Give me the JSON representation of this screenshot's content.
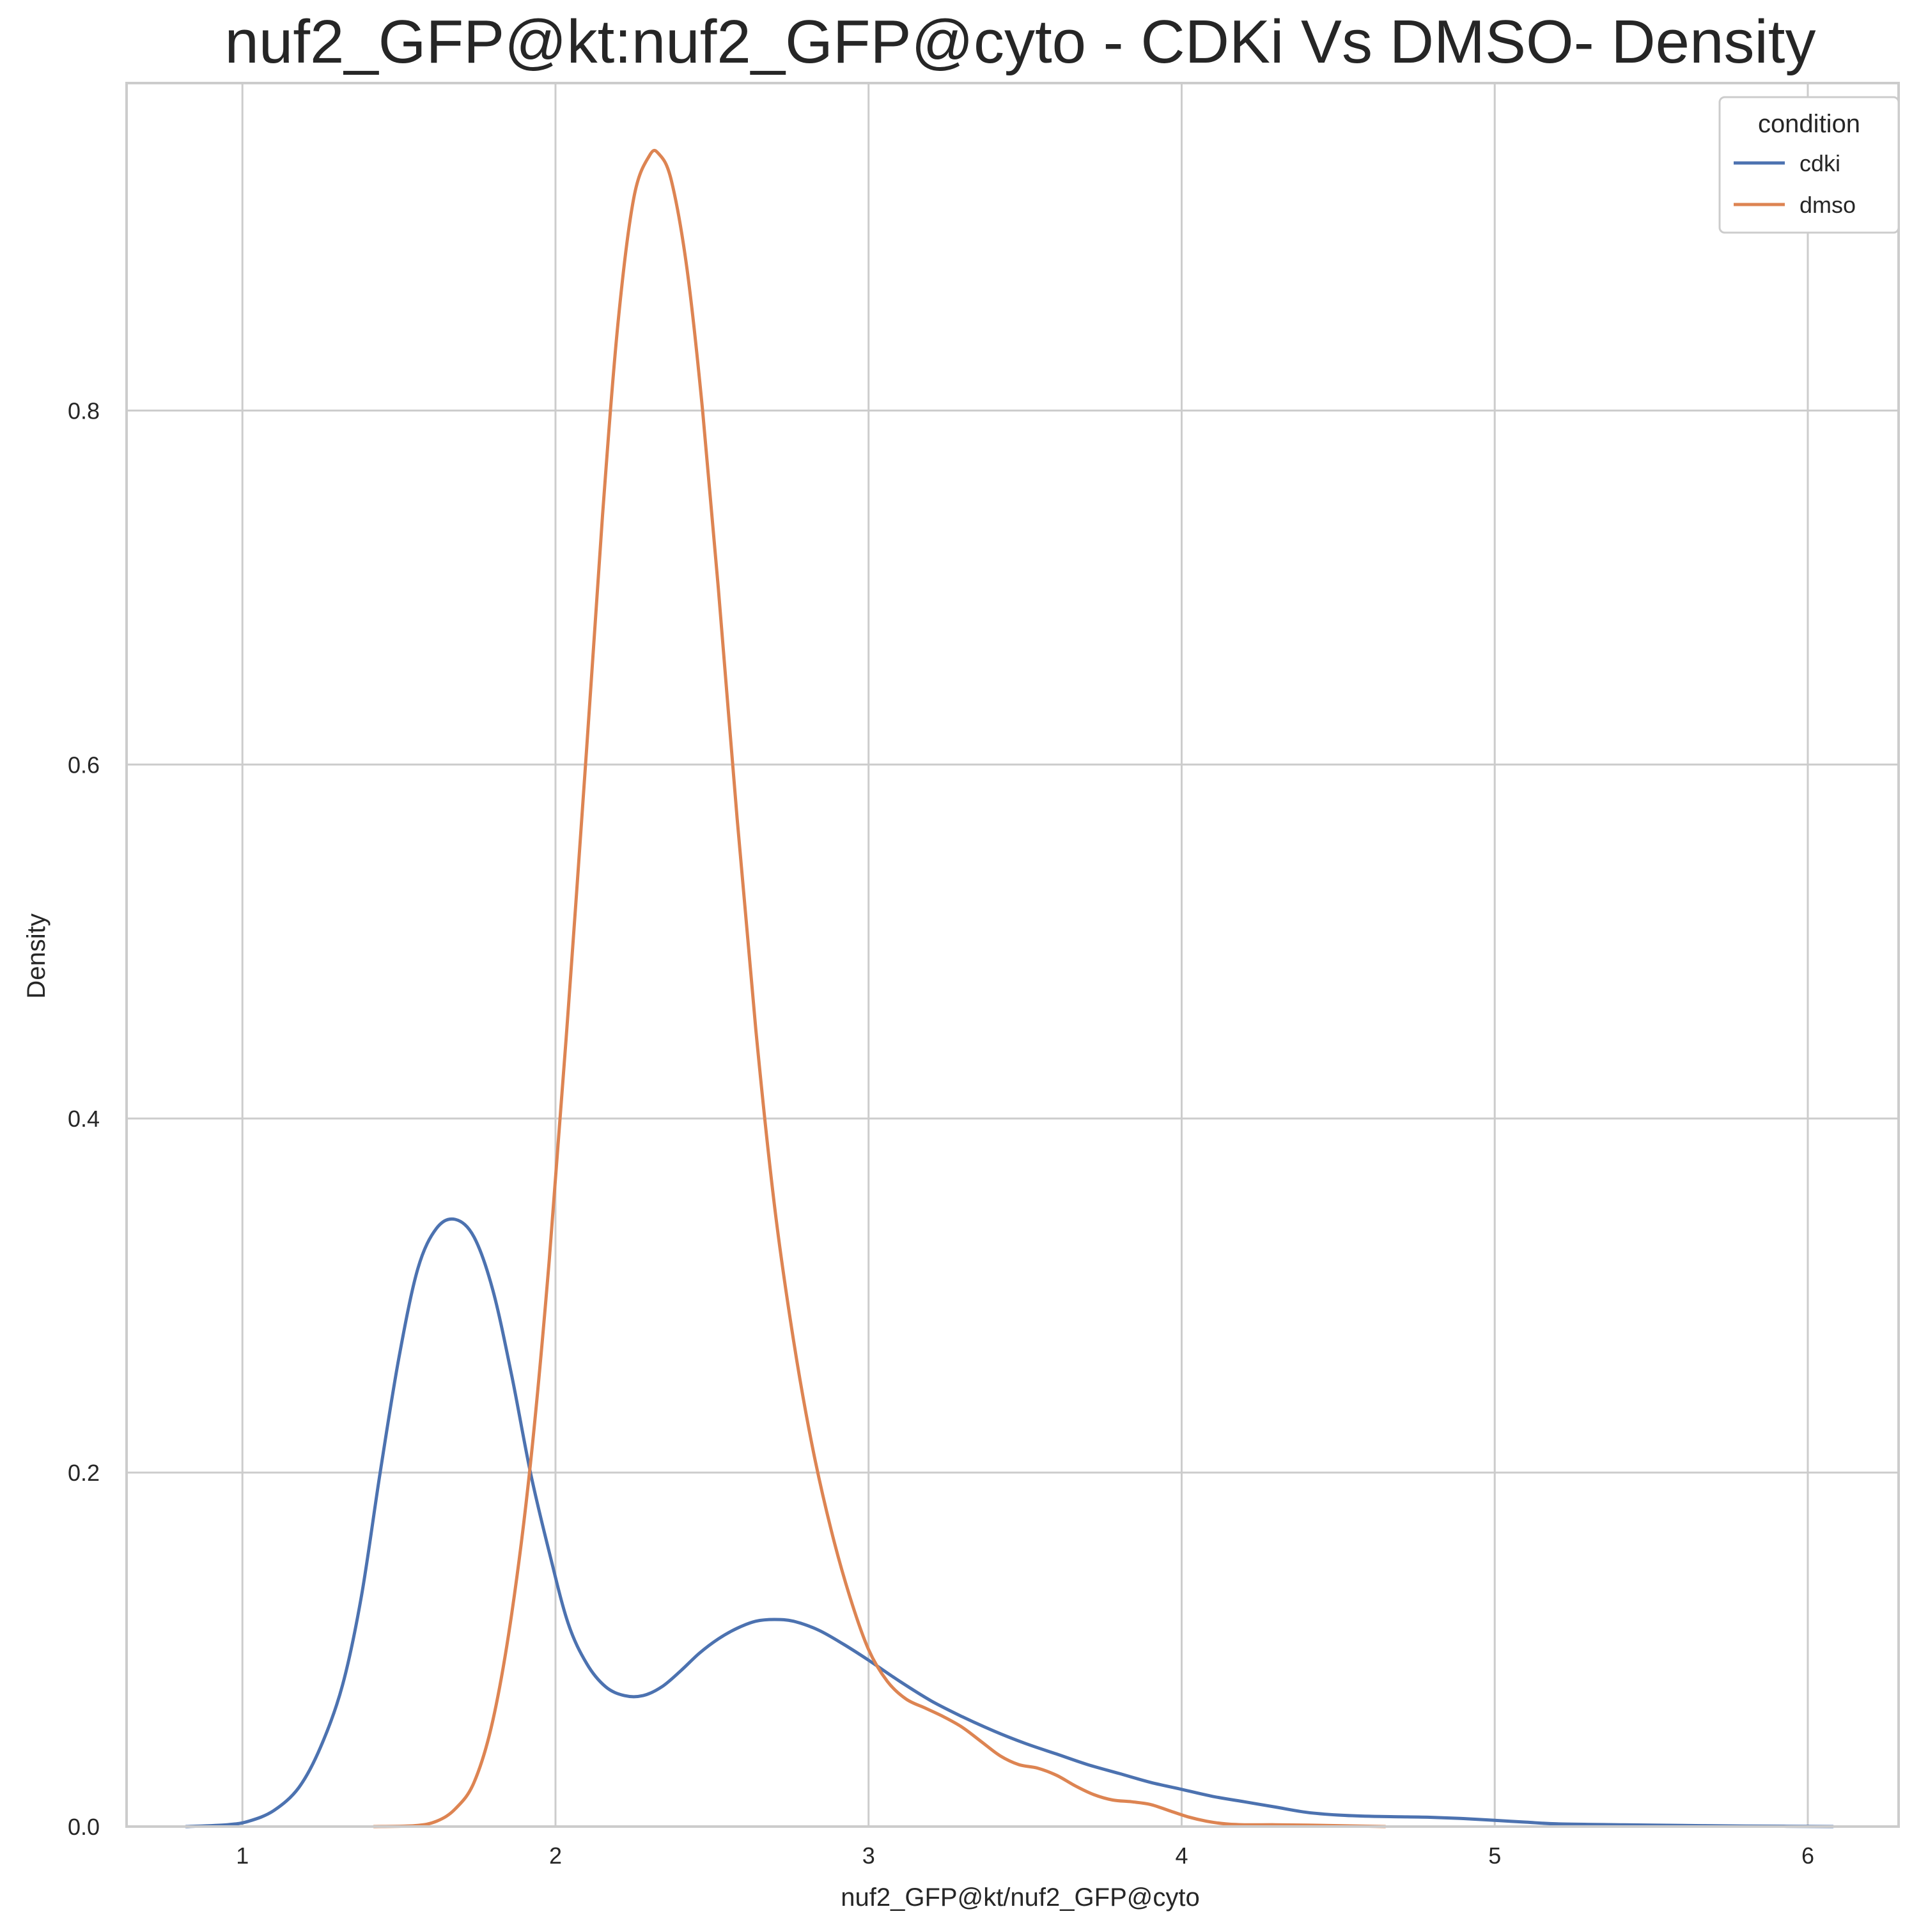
{
  "chart_data": {
    "type": "line",
    "title": "nuf2_GFP@kt:nuf2_GFP@cyto - CDKi Vs DMSO- Density",
    "xlabel": "nuf2_GFP@kt/nuf2_GFP@cyto",
    "ylabel": "Density",
    "xlim": [
      0.63,
      6.29
    ],
    "ylim": [
      0.0,
      0.985
    ],
    "x_ticks": [
      1,
      2,
      3,
      4,
      5,
      6
    ],
    "x_tick_labels": [
      "1",
      "2",
      "3",
      "4",
      "5",
      "6"
    ],
    "y_ticks": [
      0.0,
      0.2,
      0.4,
      0.6,
      0.8
    ],
    "y_tick_labels": [
      "0.0",
      "0.2",
      "0.4",
      "0.6",
      "0.8"
    ],
    "grid": true,
    "legend": {
      "title": "condition",
      "placement": "top-right"
    },
    "series": [
      {
        "name": "cdki",
        "color": "#4c72b0",
        "points": [
          [
            0.82,
            0.0
          ],
          [
            0.95,
            0.001
          ],
          [
            1.02,
            0.003
          ],
          [
            1.1,
            0.009
          ],
          [
            1.18,
            0.022
          ],
          [
            1.25,
            0.045
          ],
          [
            1.32,
            0.08
          ],
          [
            1.38,
            0.13
          ],
          [
            1.44,
            0.2
          ],
          [
            1.5,
            0.265
          ],
          [
            1.56,
            0.315
          ],
          [
            1.62,
            0.338
          ],
          [
            1.68,
            0.343
          ],
          [
            1.74,
            0.333
          ],
          [
            1.8,
            0.303
          ],
          [
            1.86,
            0.255
          ],
          [
            1.92,
            0.2
          ],
          [
            1.98,
            0.155
          ],
          [
            2.04,
            0.115
          ],
          [
            2.1,
            0.092
          ],
          [
            2.16,
            0.079
          ],
          [
            2.22,
            0.074
          ],
          [
            2.28,
            0.074
          ],
          [
            2.34,
            0.079
          ],
          [
            2.4,
            0.088
          ],
          [
            2.46,
            0.098
          ],
          [
            2.52,
            0.106
          ],
          [
            2.58,
            0.112
          ],
          [
            2.64,
            0.116
          ],
          [
            2.7,
            0.117
          ],
          [
            2.76,
            0.116
          ],
          [
            2.84,
            0.111
          ],
          [
            2.92,
            0.103
          ],
          [
            3.0,
            0.094
          ],
          [
            3.1,
            0.082
          ],
          [
            3.2,
            0.071
          ],
          [
            3.3,
            0.062
          ],
          [
            3.4,
            0.054
          ],
          [
            3.5,
            0.047
          ],
          [
            3.6,
            0.041
          ],
          [
            3.7,
            0.035
          ],
          [
            3.8,
            0.03
          ],
          [
            3.9,
            0.025
          ],
          [
            4.0,
            0.021
          ],
          [
            4.1,
            0.017
          ],
          [
            4.2,
            0.014
          ],
          [
            4.3,
            0.011
          ],
          [
            4.4,
            0.008
          ],
          [
            4.5,
            0.0065
          ],
          [
            4.6,
            0.0058
          ],
          [
            4.7,
            0.0055
          ],
          [
            4.8,
            0.0052
          ],
          [
            4.9,
            0.0045
          ],
          [
            5.0,
            0.0035
          ],
          [
            5.1,
            0.0025
          ],
          [
            5.2,
            0.0015
          ],
          [
            5.4,
            0.001
          ],
          [
            5.6,
            0.0006
          ],
          [
            5.8,
            0.0003
          ],
          [
            6.08,
            0.0
          ]
        ]
      },
      {
        "name": "dmso",
        "color": "#dd8452",
        "points": [
          [
            1.42,
            0.0
          ],
          [
            1.55,
            0.0005
          ],
          [
            1.62,
            0.003
          ],
          [
            1.68,
            0.01
          ],
          [
            1.74,
            0.025
          ],
          [
            1.8,
            0.06
          ],
          [
            1.86,
            0.12
          ],
          [
            1.92,
            0.205
          ],
          [
            1.98,
            0.32
          ],
          [
            2.04,
            0.46
          ],
          [
            2.1,
            0.61
          ],
          [
            2.15,
            0.74
          ],
          [
            2.2,
            0.85
          ],
          [
            2.25,
            0.92
          ],
          [
            2.3,
            0.944
          ],
          [
            2.33,
            0.945
          ],
          [
            2.37,
            0.93
          ],
          [
            2.42,
            0.88
          ],
          [
            2.47,
            0.8
          ],
          [
            2.52,
            0.7
          ],
          [
            2.58,
            0.57
          ],
          [
            2.64,
            0.45
          ],
          [
            2.7,
            0.35
          ],
          [
            2.76,
            0.275
          ],
          [
            2.82,
            0.215
          ],
          [
            2.88,
            0.168
          ],
          [
            2.94,
            0.13
          ],
          [
            3.0,
            0.1
          ],
          [
            3.06,
            0.082
          ],
          [
            3.12,
            0.072
          ],
          [
            3.18,
            0.067
          ],
          [
            3.24,
            0.062
          ],
          [
            3.3,
            0.056
          ],
          [
            3.36,
            0.048
          ],
          [
            3.42,
            0.04
          ],
          [
            3.48,
            0.035
          ],
          [
            3.54,
            0.033
          ],
          [
            3.6,
            0.029
          ],
          [
            3.66,
            0.023
          ],
          [
            3.72,
            0.018
          ],
          [
            3.78,
            0.015
          ],
          [
            3.84,
            0.014
          ],
          [
            3.9,
            0.0125
          ],
          [
            3.96,
            0.009
          ],
          [
            4.02,
            0.0055
          ],
          [
            4.08,
            0.003
          ],
          [
            4.14,
            0.0015
          ],
          [
            4.2,
            0.001
          ],
          [
            4.3,
            0.001
          ],
          [
            4.4,
            0.0008
          ],
          [
            4.5,
            0.0005
          ],
          [
            4.65,
            0.0
          ]
        ]
      }
    ]
  }
}
